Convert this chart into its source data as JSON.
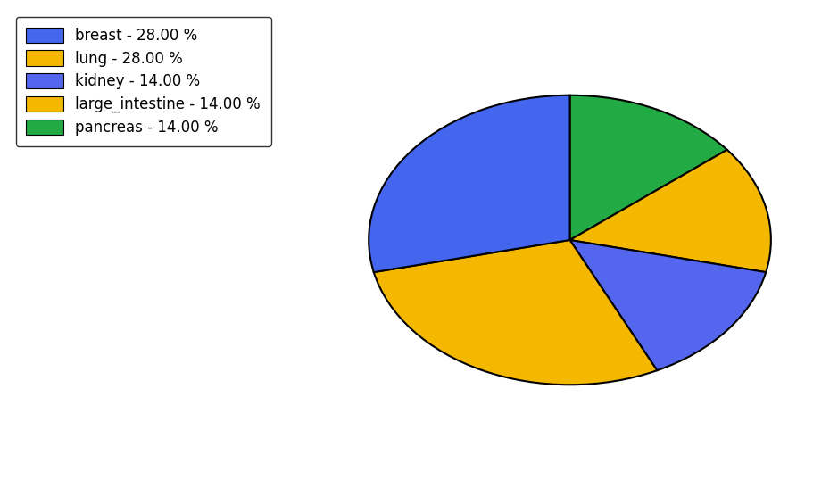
{
  "labels": [
    "breast",
    "lung",
    "kidney",
    "large_intestine",
    "pancreas"
  ],
  "sizes": [
    28,
    28,
    14,
    14,
    14
  ],
  "colors": [
    "#4466ee",
    "#f5b800",
    "#5566ee",
    "#f5b800",
    "#22aa44"
  ],
  "legend_colors": [
    "#4466ee",
    "#f5b800",
    "#5566ee",
    "#f5b800",
    "#22aa44"
  ],
  "legend_labels": [
    "breast - 28.00 %",
    "lung - 28.00 %",
    "kidney - 14.00 %",
    "large_intestine - 14.00 %",
    "pancreas - 14.00 %"
  ],
  "startangle": 90,
  "figsize": [
    9.39,
    5.38
  ],
  "dpi": 100
}
